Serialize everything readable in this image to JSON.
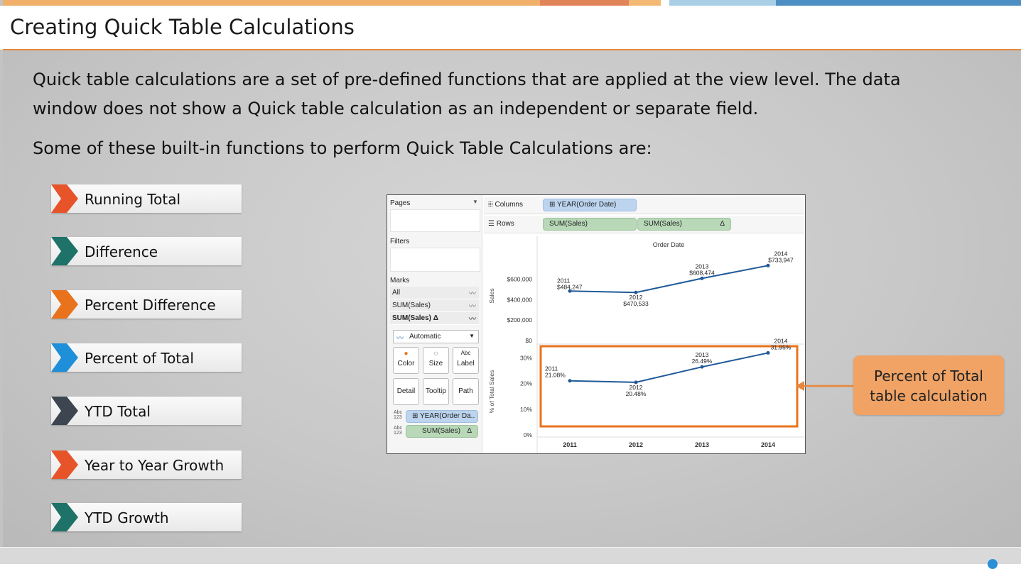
{
  "slide": {
    "title": "Creating Quick Table Calculations",
    "paragraph_line1": "Quick table calculations are a set of pre-defined functions that are applied at the view level. The data",
    "paragraph_line2": "window does not show a Quick table calculation as an independent or separate field.",
    "paragraph2": "Some of these built-in functions to perform Quick Table Calculations are:",
    "callout_line1": "Percent of Total",
    "callout_line2": "table calculation"
  },
  "functions": [
    {
      "label": "Running Total",
      "color": "#e8542a"
    },
    {
      "label": "Difference",
      "color": "#1e7268"
    },
    {
      "label": "Percent Difference",
      "color": "#e8731c"
    },
    {
      "label": "Percent of Total",
      "color": "#1f8fd9"
    },
    {
      "label": "YTD Total",
      "color": "#3d4650"
    },
    {
      "label": "Year to Year Growth",
      "color": "#e8542a"
    },
    {
      "label": "YTD Growth",
      "color": "#1e7268"
    }
  ],
  "tableau": {
    "pages_label": "Pages",
    "filters_label": "Filters",
    "marks_label": "Marks",
    "marks_rows": [
      "All",
      "SUM(Sales)",
      "SUM(Sales) Δ"
    ],
    "mark_type": "Automatic",
    "cards": [
      "Color",
      "Size",
      "Label",
      "Detail",
      "Tooltip",
      "Path"
    ],
    "abc_label": "Abc",
    "abc_num": "123",
    "mark_pills": [
      "YEAR(Order Da..",
      "SUM(Sales)"
    ],
    "delta": "Δ",
    "columns_label": "Columns",
    "rows_label": "Rows",
    "columns_pill": "YEAR(Order Date)",
    "rows_pills": [
      "SUM(Sales)",
      "SUM(Sales)"
    ],
    "header": "Order Date"
  },
  "chart_data": [
    {
      "type": "line",
      "ylabel": "Sales",
      "x": [
        "2011",
        "2012",
        "2013",
        "2014"
      ],
      "values": [
        484247,
        470533,
        608474,
        733947
      ],
      "data_labels": [
        "$484,247",
        "$470,533",
        "$608,474",
        "$733,947"
      ],
      "yticks": [
        "$0",
        "$200,000",
        "$400,000",
        "$600,000"
      ],
      "ylim": [
        0,
        750000
      ]
    },
    {
      "type": "line",
      "ylabel": "% of Total Sales",
      "x": [
        "2011",
        "2012",
        "2013",
        "2014"
      ],
      "values": [
        21.08,
        20.48,
        26.49,
        31.95
      ],
      "data_labels": [
        "21.08%",
        "20.48%",
        "26.49%",
        "31.95%"
      ],
      "yticks": [
        "0%",
        "10%",
        "20%",
        "30%"
      ],
      "ylim": [
        0,
        34
      ],
      "highlight_color": "#e8731c"
    }
  ]
}
